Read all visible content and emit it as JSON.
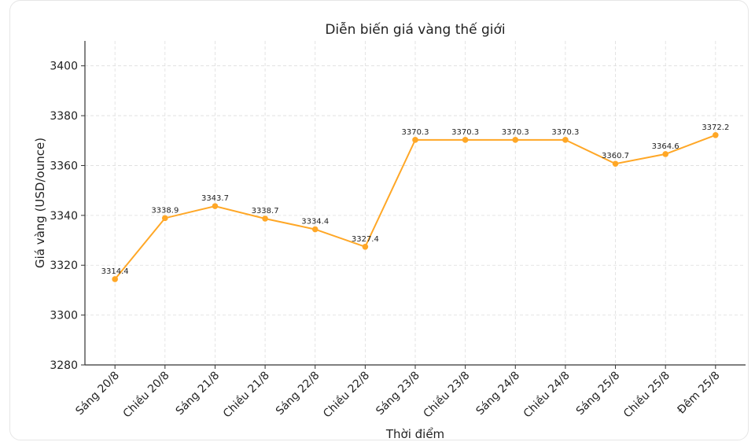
{
  "chart_data": {
    "type": "line",
    "title": "Diễn biến giá vàng thế giới",
    "xlabel": "Thời điểm",
    "ylabel": "Giá vàng (USD/ounce)",
    "categories": [
      "Sáng 20/8",
      "Chiều 20/8",
      "Sáng 21/8",
      "Chiều 21/8",
      "Sáng 22/8",
      "Chiều 22/8",
      "Sáng 23/8",
      "Chiều 23/8",
      "Sáng 24/8",
      "Chiều 24/8",
      "Sáng 25/8",
      "Chiều 25/8",
      "Đêm 25/8"
    ],
    "values": [
      3314.4,
      3338.9,
      3343.7,
      3338.7,
      3334.4,
      3327.4,
      3370.3,
      3370.3,
      3370.3,
      3370.3,
      3360.7,
      3364.6,
      3372.2
    ],
    "data_labels": [
      "3314.4",
      "3338.9",
      "3343.7",
      "3338.7",
      "3334.4",
      "3327.4",
      "3370.3",
      "3370.3",
      "3370.3",
      "3370.3",
      "3360.7",
      "3364.6",
      "3372.2"
    ],
    "yticks": [
      3280,
      3300,
      3320,
      3340,
      3360,
      3380,
      3400
    ],
    "ylim": [
      3280,
      3410
    ],
    "grid": true,
    "line_color": "#ffa726"
  }
}
